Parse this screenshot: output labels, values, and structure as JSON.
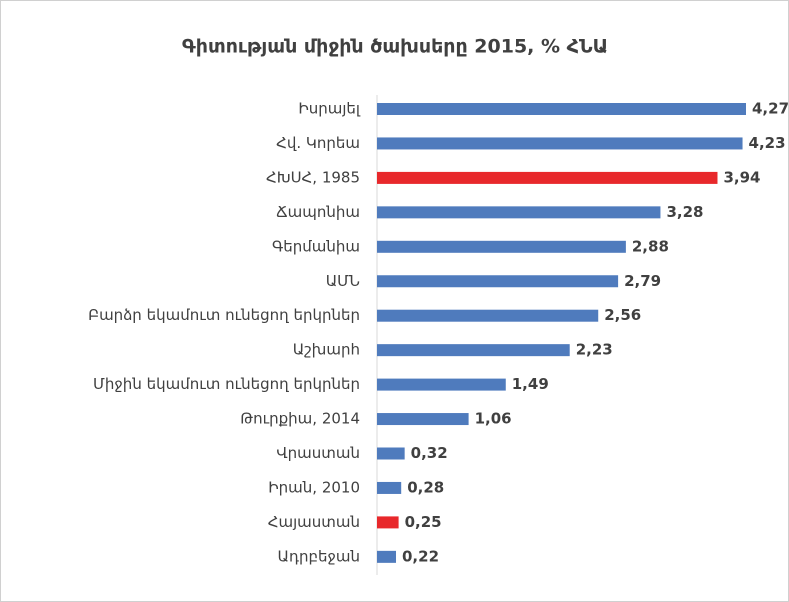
{
  "chart_data": {
    "type": "barh",
    "title": "Գիտության միջին ծախսերը 2015, % ՀՆԱ",
    "categories": [
      "Իսրայել",
      "Հվ. Կորեա",
      "ՀԽՍՀ, 1985",
      "Ճապոնիա",
      "Գերմանիա",
      "ԱՄՆ",
      "Բարձր եկամուտ ունեցող երկրներ",
      "Աշխարհ",
      "Միջին եկամուտ ունեցող երկրներ",
      "Թուրքիա, 2014",
      "Վրաստան",
      "Իրան, 2010",
      "Հայաստան",
      "Ադրբեջան"
    ],
    "values": [
      4.27,
      4.23,
      3.94,
      3.28,
      2.88,
      2.79,
      2.56,
      2.23,
      1.49,
      1.06,
      0.32,
      0.28,
      0.25,
      0.22
    ],
    "value_labels": [
      "4,27",
      "4,23",
      "3,94",
      "3,28",
      "2,88",
      "2,79",
      "2,56",
      "2,23",
      "1,49",
      "1,06",
      "0,32",
      "0,28",
      "0,25",
      "0,22"
    ],
    "colors": [
      "#4f7bbd",
      "#4f7bbd",
      "#e8282b",
      "#4f7bbd",
      "#4f7bbd",
      "#4f7bbd",
      "#4f7bbd",
      "#4f7bbd",
      "#4f7bbd",
      "#4f7bbd",
      "#4f7bbd",
      "#4f7bbd",
      "#e8282b",
      "#4f7bbd"
    ]
  }
}
